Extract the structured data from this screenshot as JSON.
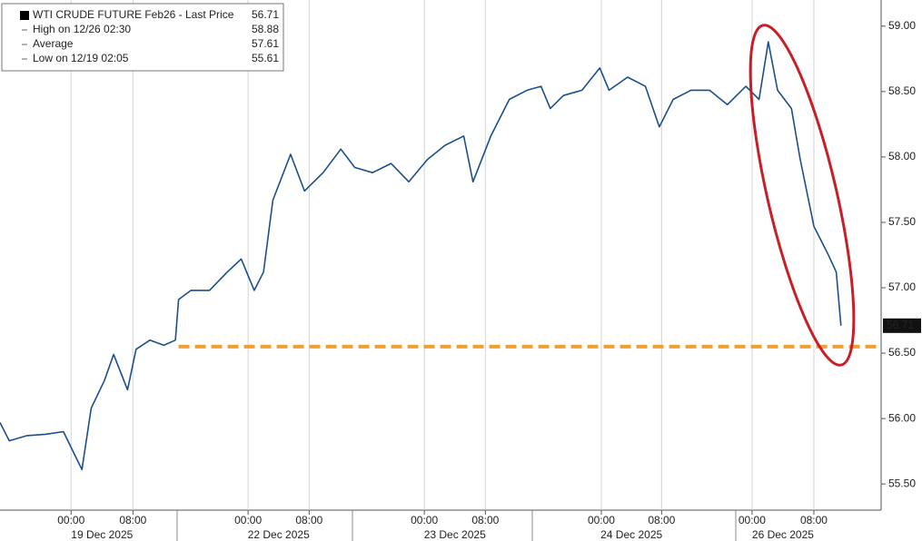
{
  "chart_data": {
    "type": "line",
    "legend": [
      {
        "label": "WTI CRUDE FUTURE Feb26 - Last Price",
        "value": 56.71
      },
      {
        "label": "High on 12/26 02:30",
        "value": 58.88
      },
      {
        "label": "Average",
        "value": 57.61
      },
      {
        "label": "Low on 12/19 02:05",
        "value": 55.61
      }
    ],
    "x": [
      0,
      1.2,
      3.5,
      5.9,
      8.2,
      10.6,
      11.8,
      13.5,
      14.7,
      16.5,
      17.6,
      19.4,
      21.2,
      22.7,
      23.1,
      24.7,
      27.1,
      29.4,
      31.2,
      32.9,
      34.1,
      35.3,
      37.6,
      39.4,
      41.8,
      44.1,
      45.9,
      48.2,
      50.6,
      52.9,
      55.3,
      57.6,
      60,
      61.2,
      63.5,
      65.9,
      68.2,
      70,
      71.2,
      72.9,
      75.3,
      77.6,
      78.8,
      81.2,
      83.5,
      85.3,
      87.1,
      89.4,
      91.8,
      94.1,
      96.5,
      98.2,
      99.4,
      100.6,
      102.4,
      103.5,
      105.3,
      107.1,
      108.2,
      108.8
    ],
    "series": [
      {
        "color": "#1b4f8c",
        "values": [
          55.97,
          55.83,
          55.87,
          55.88,
          55.9,
          55.61,
          56.08,
          56.29,
          56.49,
          56.22,
          56.53,
          56.6,
          56.56,
          56.6,
          56.91,
          56.98,
          56.98,
          57.12,
          57.22,
          56.98,
          57.12,
          57.67,
          58.02,
          57.74,
          57.88,
          58.06,
          57.92,
          57.88,
          57.95,
          57.81,
          57.98,
          58.09,
          58.16,
          57.81,
          58.16,
          58.44,
          58.51,
          58.54,
          58.37,
          58.47,
          58.51,
          58.68,
          58.51,
          58.61,
          58.54,
          58.23,
          58.44,
          58.51,
          58.51,
          58.4,
          58.54,
          58.44,
          58.88,
          58.51,
          58.37,
          57.99,
          57.47,
          57.26,
          57.12,
          56.71
        ]
      }
    ],
    "reference_line": {
      "value": 56.55,
      "from": 23.1,
      "color": "#f0a030"
    },
    "xlim": [
      0,
      114
    ],
    "xticks": [
      {
        "value": 9.2,
        "label": "00:00"
      },
      {
        "value": 17.2,
        "label": "08:00"
      },
      {
        "value": 32.1,
        "label": "00:00"
      },
      {
        "value": 40,
        "label": "08:00"
      },
      {
        "value": 54.9,
        "label": "00:00"
      },
      {
        "value": 62.8,
        "label": "08:00"
      },
      {
        "value": 77.8,
        "label": "00:00"
      },
      {
        "value": 85.6,
        "label": "08:00"
      },
      {
        "value": 97.3,
        "label": "00:00"
      },
      {
        "value": 105.3,
        "label": "08:00"
      }
    ],
    "dates": [
      "19 Dec 2025",
      "22 Dec 2025",
      "23 Dec 2025",
      "24 Dec 2025",
      "26 Dec 2025"
    ],
    "ylim": [
      55.3,
      59.2
    ],
    "yticks": [
      {
        "value": 55.5,
        "label": "55.50"
      },
      {
        "value": 56,
        "label": "56.00"
      },
      {
        "value": 56.5,
        "label": "56.50"
      },
      {
        "value": 57,
        "label": "57.00"
      },
      {
        "value": 57.5,
        "label": "57.50"
      },
      {
        "value": 58,
        "label": "58.00"
      },
      {
        "value": 58.5,
        "label": "58.50"
      },
      {
        "value": 59,
        "label": "59.00"
      }
    ],
    "grid": true
  }
}
